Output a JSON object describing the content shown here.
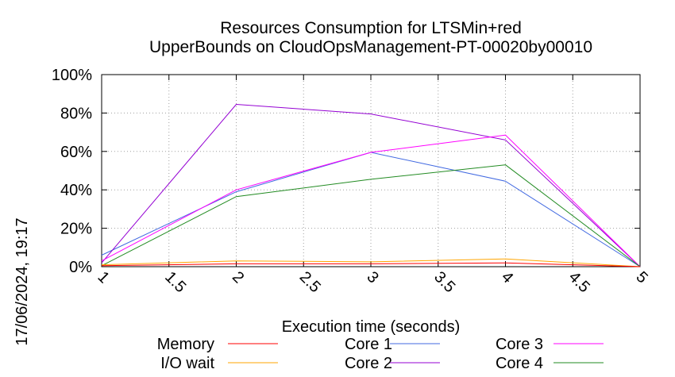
{
  "chart_data": {
    "type": "line",
    "title_line1": "Resources Consumption for LTSMin+red",
    "title_line2": "UpperBounds on CloudOpsManagement-PT-00020by00010",
    "xlabel": "Execution time (seconds)",
    "ylabel": "",
    "side_label": "17/06/2024, 19:17",
    "xlim": [
      1,
      5
    ],
    "ylim": [
      0,
      100
    ],
    "x_ticks": [
      1,
      1.5,
      2,
      2.5,
      3,
      3.5,
      4,
      4.5,
      5
    ],
    "x_tick_labels": [
      "1",
      "1.5",
      "2",
      "2.5",
      "3",
      "3.5",
      "4",
      "4.5",
      "5"
    ],
    "y_ticks": [
      0,
      20,
      40,
      60,
      80,
      100
    ],
    "y_tick_labels": [
      "0%",
      "20%",
      "40%",
      "60%",
      "80%",
      "100%"
    ],
    "grid": true,
    "legend_position": "bottom",
    "x": [
      1,
      2,
      3,
      4,
      5
    ],
    "series": [
      {
        "name": "Memory",
        "color": "#ff0000",
        "values": [
          0.5,
          1.5,
          1.5,
          2,
          0
        ]
      },
      {
        "name": "I/O wait",
        "color": "#ffa500",
        "values": [
          1,
          3,
          2.5,
          4,
          0
        ]
      },
      {
        "name": "Core 1",
        "color": "#4169e1",
        "values": [
          6,
          39,
          59.5,
          44.5,
          0
        ]
      },
      {
        "name": "Core 2",
        "color": "#9400d3",
        "values": [
          2,
          84.5,
          79.5,
          66,
          0
        ]
      },
      {
        "name": "Core 3",
        "color": "#ff00ff",
        "values": [
          3,
          40,
          59.5,
          68.5,
          0
        ]
      },
      {
        "name": "Core 4",
        "color": "#228b22",
        "values": [
          0.5,
          36.5,
          45.5,
          53,
          0
        ]
      }
    ]
  }
}
